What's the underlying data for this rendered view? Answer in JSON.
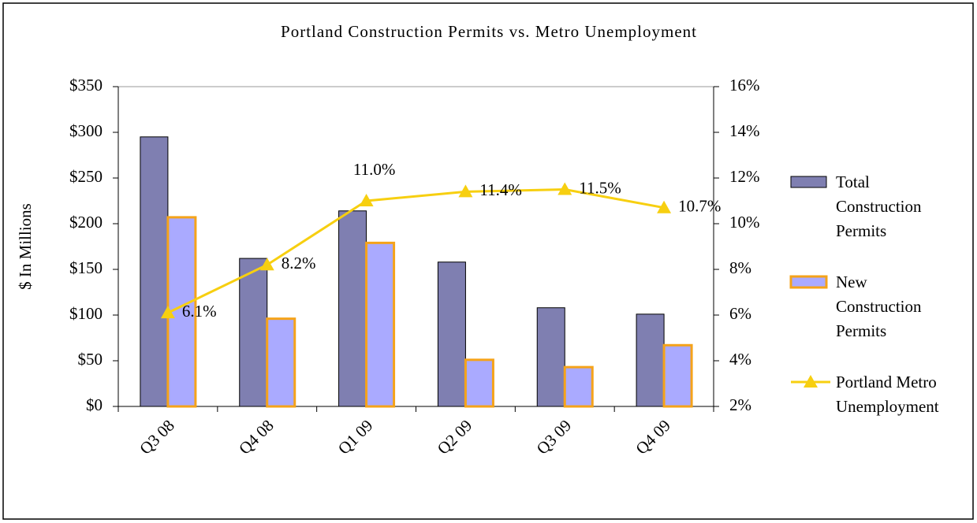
{
  "chart_data": {
    "type": "bar",
    "title": "Portland Construction Permits vs. Metro Unemployment",
    "y_label": "$ In Millions",
    "categories": [
      "Q3 08",
      "Q4 08",
      "Q1 09",
      "Q2 09",
      "Q3 09",
      "Q4 09"
    ],
    "series": [
      {
        "name": "Total Construction Permits",
        "color": "#7f7fb1",
        "type": "bar",
        "values": [
          295,
          162,
          214,
          158,
          108,
          101
        ]
      },
      {
        "name": "New Construction Permits",
        "color": "#aaaaff",
        "edge_color": "#f5a31a",
        "type": "bar",
        "values": [
          207,
          96,
          179,
          51,
          43,
          67
        ]
      },
      {
        "name": "Portland Metro Unemployment",
        "color": "#f7cf10",
        "type": "line",
        "axis": "y2",
        "values": [
          6.1,
          8.2,
          11.0,
          11.4,
          11.5,
          10.7
        ],
        "value_labels": [
          "6.1%",
          "8.2%",
          "11.0%",
          "11.4%",
          "11.5%",
          "10.7%"
        ]
      }
    ],
    "ylim": [
      0,
      350
    ],
    "yticks": [
      {
        "value": 0,
        "label": "$0"
      },
      {
        "value": 50,
        "label": "$50"
      },
      {
        "value": 100,
        "label": "$100"
      },
      {
        "value": 150,
        "label": "$150"
      },
      {
        "value": 200,
        "label": "$200"
      },
      {
        "value": 250,
        "label": "$250"
      },
      {
        "value": 300,
        "label": "$300"
      },
      {
        "value": 350,
        "label": "$350"
      }
    ],
    "y2lim": [
      2,
      16
    ],
    "y2ticks": [
      {
        "value": 2,
        "label": "2%"
      },
      {
        "value": 4,
        "label": "4%"
      },
      {
        "value": 6,
        "label": "6%"
      },
      {
        "value": 8,
        "label": "8%"
      },
      {
        "value": 10,
        "label": "10%"
      },
      {
        "value": 12,
        "label": "12%"
      },
      {
        "value": 14,
        "label": "14%"
      },
      {
        "value": 16,
        "label": "16%"
      }
    ],
    "grid": false,
    "legend": "right"
  }
}
